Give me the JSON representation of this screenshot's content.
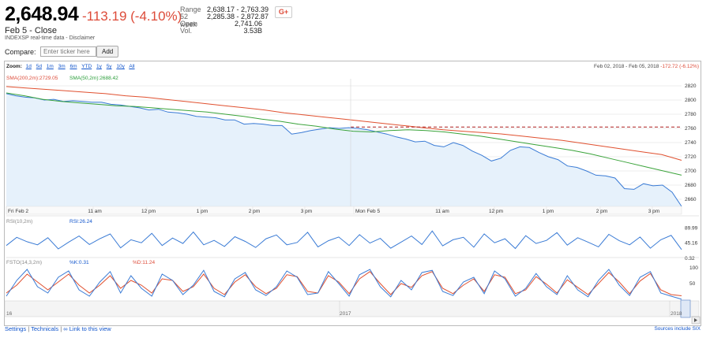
{
  "header": {
    "price": "2,648.94",
    "change": "-113.19 (-4.10%)",
    "close_label": "Feb 5 - Close",
    "source_line": "INDEXSP real-time data - Disclaimer",
    "stats": [
      {
        "label": "Range",
        "value": "2,638.17 - 2,763.39"
      },
      {
        "label": "52 week",
        "value": "2,285.38 - 2,872.87"
      },
      {
        "label": "Open",
        "value": "2,741.06"
      },
      {
        "label": "Vol.",
        "value": "3.53B"
      }
    ],
    "gplus_label": "G+"
  },
  "compare": {
    "label": "Compare:",
    "placeholder": "Enter ticker here",
    "add_label": "Add"
  },
  "zoom": {
    "label": "Zoom:",
    "options": [
      "1d",
      "5d",
      "1m",
      "3m",
      "6m",
      "YTD",
      "1y",
      "5y",
      "10y",
      "All"
    ]
  },
  "date_range": {
    "text": "Feb 02, 2018 - Feb 05, 2018",
    "change": "-172.72 (-6.12%)"
  },
  "indicators": {
    "sma200": "SMA(200,2m):2729.05",
    "sma50": "SMA(50,2m):2688.42",
    "rsi_name": "RSI(10,2m)",
    "rsi_value": "RSI:26.24",
    "fsto_name": "FSTO(14,3,2m)",
    "fsto_k": "%K:0.31",
    "fsto_d": "%D:11.24"
  },
  "colors": {
    "price": "#3a7bd5",
    "fill": "#e6f1fb",
    "sma200": "#e0502f",
    "sma50": "#3aa33a",
    "prev_close": "#b02020",
    "fsto_d": "#e0502f"
  },
  "chart_data": [
    {
      "type": "area",
      "title": "",
      "x_ticks": [
        "Fri Feb 2",
        "11 am",
        "12 pm",
        "1 pm",
        "2 pm",
        "3 pm",
        "Mon Feb 5",
        "11 am",
        "12 pm",
        "1 pm",
        "2 pm",
        "3 pm"
      ],
      "y_ticks": [
        2660,
        2680,
        2700,
        2720,
        2740,
        2760,
        2780,
        2800,
        2820
      ],
      "ylim": [
        2650,
        2830
      ],
      "previous_close": 2762,
      "series": [
        {
          "name": "Price",
          "points": [
            2809,
            2806,
            2804,
            2803,
            2800,
            2801,
            2798,
            2799,
            2798,
            2797,
            2797,
            2794,
            2793,
            2791,
            2789,
            2786,
            2787,
            2783,
            2782,
            2780,
            2777,
            2776,
            2775,
            2772,
            2772,
            2766,
            2767,
            2766,
            2764,
            2764,
            2752,
            2754,
            2757,
            2759,
            2761,
            2760,
            2761,
            2760,
            2758,
            2755,
            2752,
            2748,
            2745,
            2741,
            2742,
            2736,
            2734,
            2740,
            2736,
            2728,
            2722,
            2714,
            2718,
            2729,
            2734,
            2733,
            2726,
            2720,
            2716,
            2707,
            2705,
            2700,
            2694,
            2693,
            2690,
            2675,
            2674,
            2682,
            2679,
            2680,
            2670,
            2650
          ]
        },
        {
          "name": "SMA(200,2m)",
          "points": [
            2819,
            2817,
            2815,
            2813,
            2811,
            2809,
            2806,
            2804,
            2801,
            2798,
            2795,
            2792,
            2789,
            2786,
            2782,
            2779,
            2776,
            2773,
            2770,
            2767,
            2764,
            2761,
            2758,
            2756,
            2754,
            2752,
            2749,
            2746,
            2743,
            2739,
            2735,
            2731,
            2727,
            2723,
            2715
          ]
        },
        {
          "name": "SMA(50,2m)",
          "points": [
            2810,
            2806,
            2801,
            2798,
            2796,
            2794,
            2792,
            2791,
            2789,
            2787,
            2785,
            2783,
            2780,
            2777,
            2773,
            2770,
            2766,
            2763,
            2759,
            2756,
            2755,
            2757,
            2758,
            2757,
            2755,
            2752,
            2749,
            2745,
            2741,
            2737,
            2733,
            2729,
            2724,
            2718,
            2712,
            2706,
            2700,
            2694
          ]
        }
      ]
    },
    {
      "type": "line",
      "title": "",
      "y_ticks": [
        0.32,
        45.16,
        89.99
      ],
      "ylim": [
        0,
        100
      ],
      "series": [
        {
          "name": "RSI",
          "points": [
            38,
            62,
            49,
            40,
            61,
            28,
            48,
            66,
            41,
            58,
            72,
            31,
            55,
            46,
            74,
            38,
            60,
            44,
            78,
            40,
            53,
            35,
            64,
            50,
            32,
            58,
            69,
            40,
            47,
            77,
            34,
            52,
            63,
            38,
            70,
            45,
            59,
            30,
            48,
            66,
            41,
            81,
            37,
            55,
            62,
            33,
            72,
            46,
            58,
            29,
            67,
            44,
            53,
            76,
            39,
            61,
            48,
            34,
            71,
            52,
            40,
            63,
            30,
            55,
            68,
            26
          ]
        }
      ]
    },
    {
      "type": "line",
      "title": "",
      "y_ticks": [
        0,
        50,
        100
      ],
      "ylim": [
        0,
        100
      ],
      "series": [
        {
          "name": "%K",
          "points": [
            10,
            60,
            95,
            40,
            20,
            70,
            90,
            30,
            10,
            55,
            88,
            20,
            75,
            35,
            10,
            80,
            60,
            15,
            45,
            92,
            25,
            8,
            65,
            85,
            30,
            12,
            40,
            90,
            70,
            15,
            20,
            88,
            50,
            10,
            78,
            95,
            40,
            8,
            60,
            30,
            85,
            92,
            25,
            12,
            55,
            70,
            18,
            90,
            65,
            10,
            35,
            82,
            40,
            15,
            75,
            30,
            8,
            60,
            95,
            45,
            12,
            70,
            88,
            20,
            10,
            0.31
          ]
        },
        {
          "name": "%D",
          "points": [
            20,
            45,
            80,
            55,
            30,
            55,
            80,
            45,
            20,
            45,
            75,
            35,
            60,
            45,
            20,
            65,
            60,
            25,
            40,
            80,
            35,
            15,
            55,
            78,
            40,
            18,
            35,
            78,
            72,
            25,
            20,
            75,
            55,
            18,
            65,
            88,
            50,
            15,
            50,
            38,
            75,
            88,
            35,
            18,
            45,
            65,
            25,
            78,
            70,
            18,
            30,
            72,
            48,
            20,
            62,
            38,
            15,
            50,
            85,
            55,
            18,
            58,
            82,
            30,
            15,
            11.24
          ]
        }
      ]
    }
  ],
  "timeline": {
    "labels": [
      "16",
      "2017",
      "2018"
    ]
  },
  "footer": {
    "settings": "Settings",
    "technicals": "Technicals",
    "link": "Link to this view",
    "sources": "Sources include SIX"
  }
}
